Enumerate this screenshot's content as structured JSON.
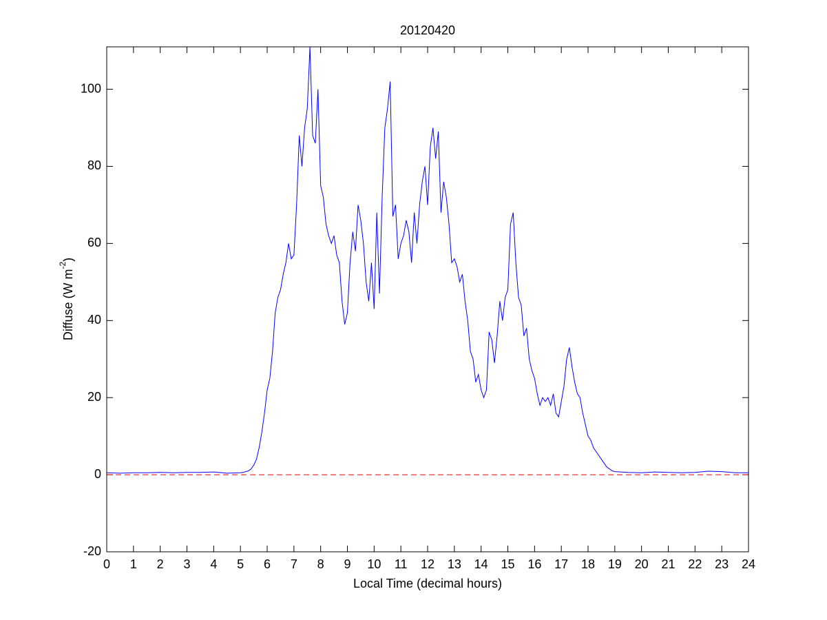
{
  "chart_data": {
    "type": "line",
    "title": "20120420",
    "xlabel": "Local Time (decimal hours)",
    "ylabel": {
      "text": "Diffuse (W m",
      "sup": "-2",
      "end": ")"
    },
    "x": [
      0,
      0.5,
      1,
      1.5,
      2,
      2.5,
      3,
      3.5,
      4,
      4.5,
      5,
      5.1,
      5.2,
      5.3,
      5.4,
      5.5,
      5.6,
      5.7,
      5.8,
      5.9,
      6.0,
      6.1,
      6.2,
      6.3,
      6.4,
      6.5,
      6.6,
      6.7,
      6.8,
      6.9,
      7.0,
      7.1,
      7.2,
      7.3,
      7.4,
      7.5,
      7.6,
      7.7,
      7.8,
      7.9,
      8.0,
      8.1,
      8.2,
      8.3,
      8.4,
      8.5,
      8.6,
      8.7,
      8.8,
      8.9,
      9.0,
      9.1,
      9.2,
      9.3,
      9.4,
      9.5,
      9.6,
      9.7,
      9.8,
      9.9,
      10.0,
      10.1,
      10.2,
      10.3,
      10.4,
      10.5,
      10.6,
      10.7,
      10.8,
      10.9,
      11.0,
      11.1,
      11.2,
      11.3,
      11.4,
      11.5,
      11.6,
      11.7,
      11.8,
      11.9,
      12.0,
      12.1,
      12.2,
      12.3,
      12.4,
      12.5,
      12.6,
      12.7,
      12.8,
      12.9,
      13.0,
      13.1,
      13.2,
      13.3,
      13.4,
      13.5,
      13.6,
      13.7,
      13.8,
      13.9,
      14.0,
      14.1,
      14.2,
      14.3,
      14.4,
      14.5,
      14.6,
      14.7,
      14.8,
      14.9,
      15.0,
      15.1,
      15.2,
      15.3,
      15.4,
      15.5,
      15.6,
      15.7,
      15.8,
      15.9,
      16.0,
      16.1,
      16.2,
      16.3,
      16.4,
      16.5,
      16.6,
      16.7,
      16.8,
      16.9,
      17.0,
      17.1,
      17.2,
      17.3,
      17.4,
      17.5,
      17.6,
      17.7,
      17.8,
      17.9,
      18.0,
      18.1,
      18.2,
      18.3,
      18.4,
      18.5,
      18.6,
      18.7,
      18.8,
      18.9,
      19.0,
      19.5,
      20,
      20.5,
      21,
      21.5,
      22,
      22.5,
      23,
      23.5,
      24
    ],
    "series": [
      {
        "name": "Diffuse",
        "color": "#0000ff",
        "values": [
          0.5,
          0.4,
          0.5,
          0.5,
          0.6,
          0.5,
          0.6,
          0.6,
          0.7,
          0.4,
          0.5,
          0.6,
          0.8,
          1.0,
          1.5,
          2.5,
          4,
          7,
          11,
          16,
          22,
          25,
          32,
          42,
          46,
          48,
          52,
          55,
          60,
          56,
          57,
          70,
          88,
          80,
          90,
          95,
          111,
          88,
          86,
          100,
          75,
          72,
          65,
          62,
          60,
          62,
          57,
          55,
          45,
          39,
          42,
          55,
          63,
          58,
          70,
          66,
          60,
          50,
          45,
          55,
          43,
          68,
          47,
          72,
          90,
          95,
          102,
          67,
          70,
          56,
          60,
          62,
          66,
          63,
          55,
          68,
          60,
          70,
          76,
          80,
          70,
          85,
          90,
          82,
          89,
          68,
          76,
          72,
          65,
          55,
          56,
          54,
          50,
          52,
          45,
          40,
          32,
          30,
          24,
          26,
          22,
          20,
          22,
          37,
          35,
          29,
          36,
          45,
          40,
          46,
          48,
          65,
          68,
          55,
          46,
          44,
          36,
          38,
          30,
          27,
          25,
          21,
          18,
          20,
          19,
          20,
          18,
          21,
          16,
          15,
          19,
          23,
          30,
          33,
          28,
          24,
          21,
          20,
          16,
          13,
          10,
          9,
          7,
          6,
          5,
          4,
          3,
          2,
          1.5,
          1,
          0.8,
          0.6,
          0.5,
          0.7,
          0.6,
          0.5,
          0.6,
          0.9,
          0.8,
          0.5,
          0.5
        ]
      }
    ],
    "zero_line": {
      "y": 0,
      "color": "#ff0000",
      "style": "dashed"
    },
    "xlim": [
      0,
      24
    ],
    "xticks": [
      0,
      1,
      2,
      3,
      4,
      5,
      6,
      7,
      8,
      9,
      10,
      11,
      12,
      13,
      14,
      15,
      16,
      17,
      18,
      19,
      20,
      21,
      22,
      23,
      24
    ],
    "ylim": [
      -20,
      111
    ],
    "yticks": [
      -20,
      0,
      20,
      40,
      60,
      80,
      100
    ],
    "grid": false
  }
}
